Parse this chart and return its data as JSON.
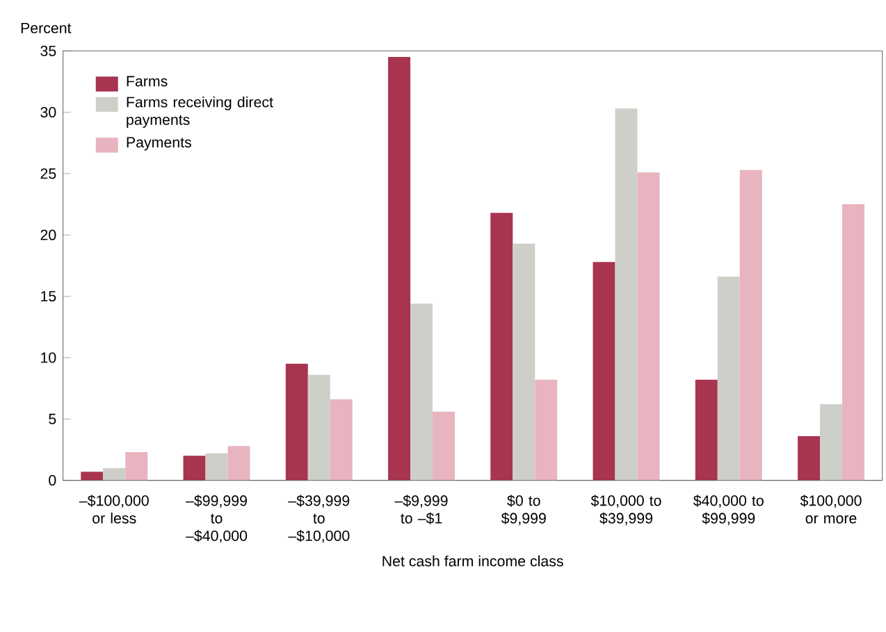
{
  "chart_data": {
    "type": "bar",
    "ylabel": "Percent",
    "xlabel": "Net cash farm income class",
    "categories": [
      "–$100,000 or less",
      "–$99,999 to –$40,000",
      "–$39,999 to –$10,000",
      "–$9,999 to –$1",
      "$0 to $9,999",
      "$10,000 to $39,999",
      "$40,000 to $99,999",
      "$100,000 or more"
    ],
    "series": [
      {
        "name": "Farms",
        "color": "#a8344f",
        "values": [
          0.7,
          2.0,
          9.5,
          34.5,
          21.8,
          17.8,
          8.2,
          3.6
        ]
      },
      {
        "name": "Farms receiving direct payments",
        "color": "#cfcfca",
        "values": [
          1.0,
          2.2,
          8.6,
          14.4,
          19.3,
          30.3,
          16.6,
          6.2
        ]
      },
      {
        "name": "Payments",
        "color": "#e8b4c0",
        "values": [
          2.3,
          2.8,
          6.6,
          5.6,
          8.2,
          25.1,
          25.3,
          22.5
        ]
      }
    ],
    "ylim": [
      0,
      35
    ],
    "yticks": [
      0,
      5,
      10,
      15,
      20,
      25,
      30,
      35
    ],
    "grid": false,
    "legend": "top left"
  }
}
